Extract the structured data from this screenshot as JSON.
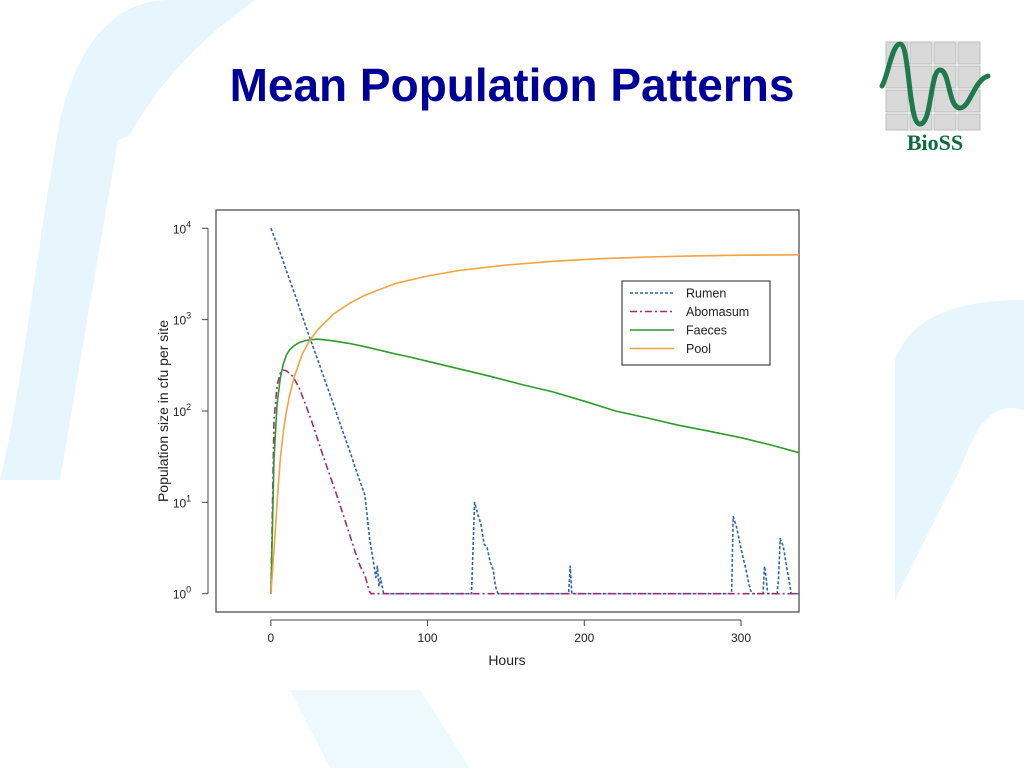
{
  "slide": {
    "title": "Mean Population Patterns",
    "logo_text": "BioSS"
  },
  "colors": {
    "title": "#000099",
    "background_shape": "#e6f6fc",
    "logo_text": "#0b6b3a",
    "logo_wave": "#1e7a4e"
  },
  "chart_data": {
    "type": "line",
    "title": "",
    "xlabel": "Hours",
    "ylabel": "Population size in cfu per site",
    "y_scale": "log10",
    "xlim": [
      -35,
      337
    ],
    "ylim_log10": [
      -0.2,
      4.2
    ],
    "x_ticks": [
      0,
      100,
      200,
      300
    ],
    "x_tick_labels": [
      "0",
      "100",
      "200",
      "300"
    ],
    "y_ticks_log10": [
      0,
      1,
      2,
      3,
      4
    ],
    "y_tick_labels": [
      {
        "base": "10",
        "exp": "0"
      },
      {
        "base": "10",
        "exp": "1"
      },
      {
        "base": "10",
        "exp": "2"
      },
      {
        "base": "10",
        "exp": "3"
      },
      {
        "base": "10",
        "exp": "4"
      }
    ],
    "legend_position": "top-right",
    "series": [
      {
        "name": "Rumen",
        "color": "#2a63b5",
        "dash": "3,2",
        "x": [
          0,
          5,
          10,
          15,
          20,
          25,
          30,
          35,
          40,
          45,
          50,
          55,
          60,
          63,
          65,
          67,
          68,
          69,
          70,
          71,
          72,
          100,
          128,
          130,
          132,
          134,
          136,
          138,
          140,
          142,
          143,
          144,
          145,
          190,
          191,
          192,
          193,
          294,
          295,
          297,
          299,
          301,
          303,
          305,
          306,
          307,
          310,
          314,
          315,
          316,
          317,
          323,
          324,
          325,
          327,
          329,
          331,
          332,
          337
        ],
        "y": [
          10000,
          6000,
          3400,
          1950,
          1100,
          620,
          360,
          205,
          118,
          66,
          38,
          21,
          12,
          4,
          2.5,
          1.5,
          2,
          1.2,
          1.5,
          1.2,
          1,
          1,
          1,
          10,
          7.5,
          5.8,
          3.5,
          3.2,
          2.2,
          1.8,
          1.3,
          1.1,
          1,
          1,
          2,
          1,
          1,
          1,
          7,
          5.5,
          3.8,
          2.6,
          1.9,
          1.3,
          1.1,
          1,
          1,
          1,
          2,
          1.5,
          1,
          1,
          1.5,
          4,
          3.3,
          2,
          1.3,
          1,
          1
        ]
      },
      {
        "name": "Abomasum",
        "color": "#a0306a",
        "dash": "7,3,2,3",
        "x": [
          0,
          2,
          4,
          6,
          8,
          10,
          14,
          18,
          22,
          26,
          30,
          34,
          38,
          42,
          46,
          50,
          54,
          57,
          60,
          62,
          63,
          64,
          337
        ],
        "y": [
          1,
          80,
          190,
          260,
          280,
          275,
          240,
          180,
          120,
          78,
          48,
          30,
          19,
          12,
          7.5,
          4.6,
          2.8,
          2,
          1.6,
          1.2,
          1.05,
          1,
          1
        ]
      },
      {
        "name": "Faeces",
        "color": "#2c9b2c",
        "dash": "",
        "x": [
          0,
          2,
          4,
          6,
          8,
          10,
          12,
          15,
          18,
          22,
          26,
          30,
          35,
          40,
          50,
          60,
          70,
          80,
          90,
          100,
          120,
          140,
          160,
          180,
          200,
          220,
          240,
          260,
          280,
          300,
          320,
          337
        ],
        "y": [
          1,
          30,
          120,
          230,
          330,
          410,
          470,
          520,
          560,
          590,
          605,
          610,
          600,
          585,
          550,
          505,
          460,
          420,
          385,
          350,
          290,
          240,
          195,
          162,
          128,
          100,
          84,
          70,
          60,
          51,
          42,
          35
        ]
      },
      {
        "name": "Pool",
        "color": "#f5a340",
        "dash": "",
        "x": [
          0,
          2,
          4,
          6,
          8,
          10,
          12,
          15,
          20,
          25,
          30,
          40,
          50,
          60,
          80,
          100,
          120,
          150,
          180,
          210,
          240,
          270,
          300,
          337
        ],
        "y": [
          1,
          3,
          10,
          30,
          60,
          100,
          150,
          240,
          420,
          600,
          780,
          1150,
          1500,
          1850,
          2500,
          3000,
          3450,
          3950,
          4350,
          4650,
          4850,
          4980,
          5070,
          5130
        ]
      }
    ]
  }
}
